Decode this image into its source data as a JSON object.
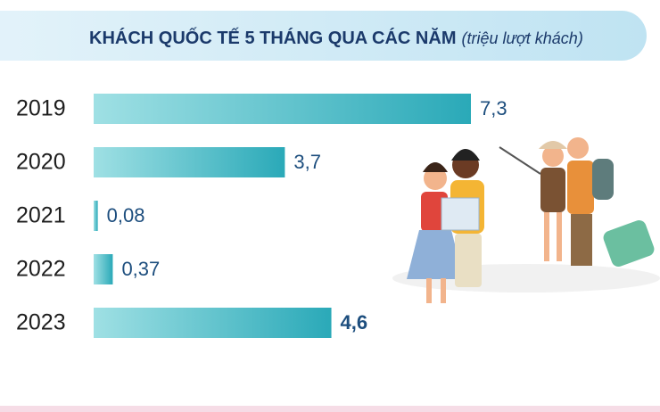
{
  "chart_data": {
    "type": "bar",
    "orientation": "horizontal",
    "title": "KHÁCH QUỐC TẾ 5 THÁNG QUA CÁC NĂM",
    "subtitle": "(triệu lượt khách)",
    "categories": [
      "2019",
      "2020",
      "2021",
      "2022",
      "2023"
    ],
    "values": [
      7.3,
      3.7,
      0.08,
      0.37,
      4.6
    ],
    "value_labels": [
      "7,3",
      "3,7",
      "0,08",
      "0,37",
      "4,6"
    ],
    "color": "#2aa9b8"
  }
}
